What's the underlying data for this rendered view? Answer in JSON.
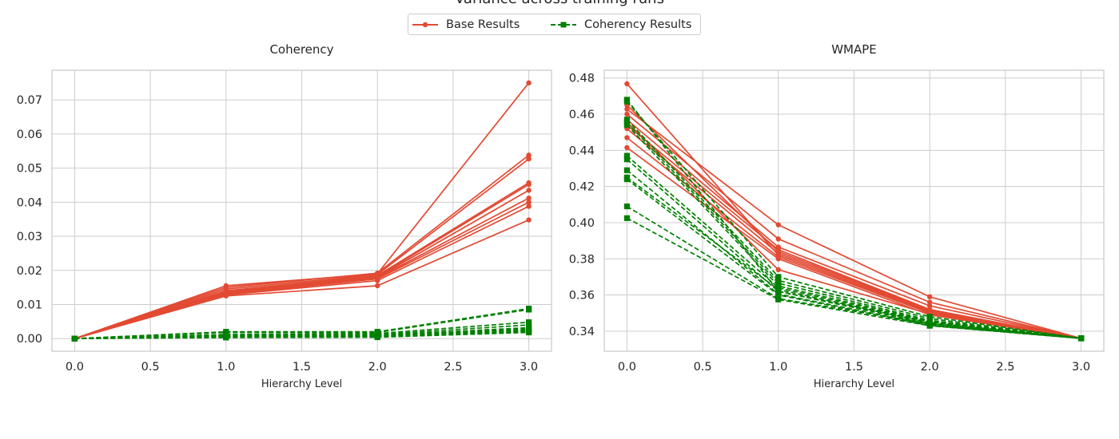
{
  "figure": {
    "suptitle": "Variance across training runs",
    "legend": [
      "Base Results",
      "Coherency Results"
    ]
  },
  "colors": {
    "base": "#e24a33",
    "coherency": "#008000",
    "grid": "#cccccc",
    "spine": "#cccccc",
    "text": "#262626"
  },
  "chart_data": [
    {
      "type": "line",
      "title": "Coherency",
      "xlabel": "Hierarchy Level",
      "ylabel": "",
      "x": [
        0,
        1,
        2,
        3
      ],
      "xlim": [
        -0.15,
        3.15
      ],
      "ylim": [
        -0.0037,
        0.0787
      ],
      "xticks": [
        "0.0",
        "0.5",
        "1.0",
        "1.5",
        "2.0",
        "2.5",
        "3.0"
      ],
      "yticks": [
        "0.00",
        "0.01",
        "0.02",
        "0.03",
        "0.04",
        "0.05",
        "0.06",
        "0.07"
      ],
      "grid": true,
      "series": [
        {
          "group": "base",
          "values": [
            0,
            0.0155,
            0.019,
            0.075
          ]
        },
        {
          "group": "base",
          "values": [
            0,
            0.015,
            0.0192,
            0.0538
          ]
        },
        {
          "group": "base",
          "values": [
            0,
            0.0145,
            0.0188,
            0.0527
          ]
        },
        {
          "group": "base",
          "values": [
            0,
            0.014,
            0.0185,
            0.0457
          ]
        },
        {
          "group": "base",
          "values": [
            0,
            0.0138,
            0.0182,
            0.0452
          ]
        },
        {
          "group": "base",
          "values": [
            0,
            0.0135,
            0.018,
            0.0435
          ]
        },
        {
          "group": "base",
          "values": [
            0,
            0.0132,
            0.0178,
            0.0412
          ]
        },
        {
          "group": "base",
          "values": [
            0,
            0.013,
            0.0175,
            0.04
          ]
        },
        {
          "group": "base",
          "values": [
            0,
            0.0128,
            0.017,
            0.0388
          ]
        },
        {
          "group": "base",
          "values": [
            0,
            0.0125,
            0.0155,
            0.0348
          ]
        },
        {
          "group": "coherency",
          "values": [
            0,
            0.002,
            0.002,
            0.0088
          ]
        },
        {
          "group": "coherency",
          "values": [
            0,
            0.0018,
            0.0018,
            0.0085
          ]
        },
        {
          "group": "coherency",
          "values": [
            0,
            0.0012,
            0.0015,
            0.0048
          ]
        },
        {
          "group": "coherency",
          "values": [
            0,
            0.001,
            0.0012,
            0.004
          ]
        },
        {
          "group": "coherency",
          "values": [
            0,
            0.001,
            0.001,
            0.0032
          ]
        },
        {
          "group": "coherency",
          "values": [
            0,
            0.0008,
            0.001,
            0.0028
          ]
        },
        {
          "group": "coherency",
          "values": [
            0,
            0.0006,
            0.0008,
            0.0025
          ]
        },
        {
          "group": "coherency",
          "values": [
            0,
            0.0005,
            0.0006,
            0.0022
          ]
        },
        {
          "group": "coherency",
          "values": [
            0,
            0.0004,
            0.0005,
            0.002
          ]
        },
        {
          "group": "coherency",
          "values": [
            0,
            0.0003,
            0.0004,
            0.0018
          ]
        }
      ]
    },
    {
      "type": "line",
      "title": "WMAPE",
      "xlabel": "Hierarchy Level",
      "ylabel": "",
      "x": [
        0,
        1,
        2,
        3
      ],
      "xlim": [
        -0.15,
        3.15
      ],
      "ylim": [
        0.3289,
        0.4843
      ],
      "xticks": [
        "0.0",
        "0.5",
        "1.0",
        "1.5",
        "2.0",
        "2.5",
        "3.0"
      ],
      "yticks": [
        "0.34",
        "0.36",
        "0.38",
        "0.40",
        "0.42",
        "0.44",
        "0.46",
        "0.48"
      ],
      "grid": true,
      "series": [
        {
          "group": "base",
          "values": [
            0.4768,
            0.382,
            0.3505,
            0.336
          ]
        },
        {
          "group": "base",
          "values": [
            0.4628,
            0.3988,
            0.359,
            0.336
          ]
        },
        {
          "group": "base",
          "values": [
            0.46,
            0.391,
            0.356,
            0.336
          ]
        },
        {
          "group": "base",
          "values": [
            0.457,
            0.3865,
            0.354,
            0.336
          ]
        },
        {
          "group": "base",
          "values": [
            0.454,
            0.385,
            0.352,
            0.336
          ]
        },
        {
          "group": "base",
          "values": [
            0.452,
            0.383,
            0.351,
            0.336
          ]
        },
        {
          "group": "base",
          "values": [
            0.447,
            0.381,
            0.35,
            0.336
          ]
        },
        {
          "group": "base",
          "values": [
            0.4415,
            0.38,
            0.349,
            0.336
          ]
        },
        {
          "group": "base",
          "values": [
            0.465,
            0.384,
            0.3515,
            0.336
          ]
        },
        {
          "group": "base",
          "values": [
            0.4555,
            0.374,
            0.3495,
            0.336
          ]
        },
        {
          "group": "coherency",
          "values": [
            0.468,
            0.362,
            0.345,
            0.336
          ]
        },
        {
          "group": "coherency",
          "values": [
            0.467,
            0.37,
            0.348,
            0.336
          ]
        },
        {
          "group": "coherency",
          "values": [
            0.457,
            0.368,
            0.347,
            0.336
          ]
        },
        {
          "group": "coherency",
          "values": [
            0.4555,
            0.3665,
            0.346,
            0.336
          ]
        },
        {
          "group": "coherency",
          "values": [
            0.454,
            0.365,
            0.3455,
            0.336
          ]
        },
        {
          "group": "coherency",
          "values": [
            0.437,
            0.364,
            0.345,
            0.336
          ]
        },
        {
          "group": "coherency",
          "values": [
            0.435,
            0.362,
            0.344,
            0.336
          ]
        },
        {
          "group": "coherency",
          "values": [
            0.429,
            0.3605,
            0.3435,
            0.336
          ]
        },
        {
          "group": "coherency",
          "values": [
            0.425,
            0.363,
            0.3445,
            0.336
          ]
        },
        {
          "group": "coherency",
          "values": [
            0.424,
            0.36,
            0.343,
            0.336
          ]
        },
        {
          "group": "coherency",
          "values": [
            0.409,
            0.358,
            0.344,
            0.336
          ]
        },
        {
          "group": "coherency",
          "values": [
            0.4025,
            0.3575,
            0.343,
            0.336
          ]
        }
      ]
    }
  ]
}
